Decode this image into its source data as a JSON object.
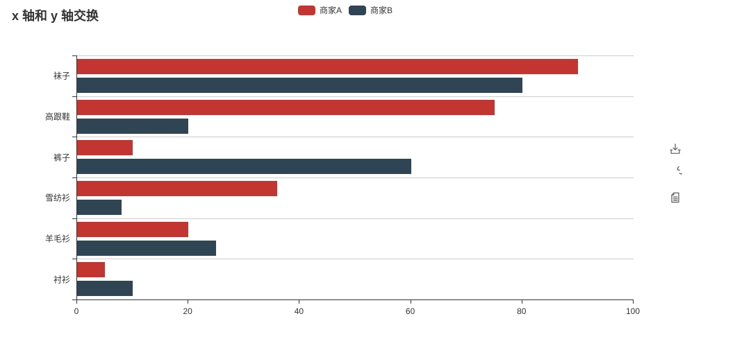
{
  "title": "x 轴和 y 轴交换",
  "legend": {
    "items": [
      {
        "label": "商家A",
        "color": "#c23531"
      },
      {
        "label": "商家B",
        "color": "#2f4554"
      }
    ]
  },
  "toolbox": {
    "icons": [
      {
        "name": "save-as-image-icon",
        "title": "保存为图片"
      },
      {
        "name": "restore-icon",
        "title": "还原"
      },
      {
        "name": "data-view-icon",
        "title": "数据视图"
      }
    ],
    "icon_color": "#696969"
  },
  "chart_data": {
    "type": "bar",
    "orientation": "horizontal",
    "title": "x 轴和 y 轴交换",
    "categories": [
      "衬衫",
      "羊毛衫",
      "雪纺衫",
      "裤子",
      "高跟鞋",
      "袜子"
    ],
    "category_axis": "y",
    "category_order": "bottom-to-top",
    "series": [
      {
        "name": "商家A",
        "color": "#c23531",
        "values": [
          5,
          20,
          36,
          10,
          75,
          90
        ]
      },
      {
        "name": "商家B",
        "color": "#2f4554",
        "values": [
          10,
          25,
          8,
          60,
          20,
          80
        ]
      }
    ],
    "xlabel": "",
    "ylabel": "",
    "xlim": [
      0,
      100
    ],
    "x_ticks": [
      0,
      20,
      40,
      60,
      80,
      100
    ],
    "grid": "category-split-lines-only",
    "legend_position": "top-center",
    "axis_color": "#333333",
    "split_line_color": "#cccccc"
  }
}
